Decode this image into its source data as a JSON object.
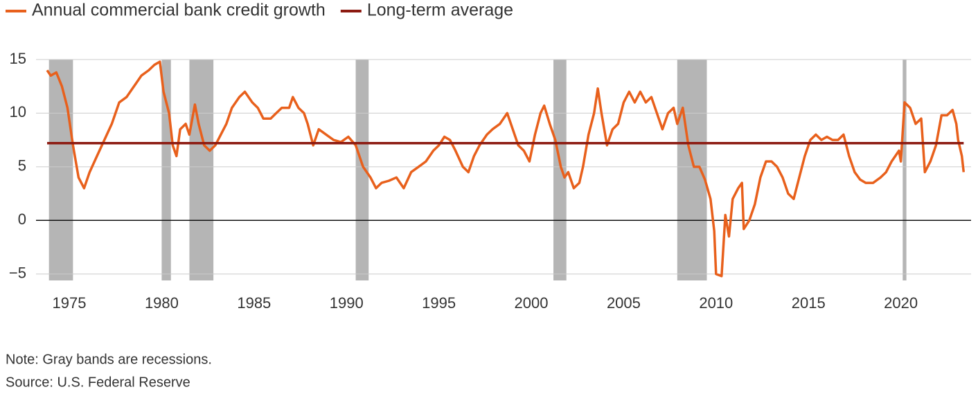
{
  "chart_data": {
    "type": "line",
    "series": [
      {
        "name": "Annual commercial bank credit growth",
        "color": "#e8601c",
        "x": [
          1973.8,
          1974.0,
          1974.3,
          1974.6,
          1974.9,
          1975.2,
          1975.5,
          1975.8,
          1976.1,
          1976.5,
          1976.9,
          1977.3,
          1977.7,
          1978.1,
          1978.5,
          1978.9,
          1979.3,
          1979.6,
          1979.9,
          1980.1,
          1980.4,
          1980.6,
          1980.8,
          1981.0,
          1981.3,
          1981.5,
          1981.8,
          1982.0,
          1982.3,
          1982.6,
          1982.9,
          1983.2,
          1983.5,
          1983.8,
          1984.2,
          1984.5,
          1984.9,
          1985.2,
          1985.5,
          1985.9,
          1986.2,
          1986.5,
          1986.9,
          1987.1,
          1987.4,
          1987.7,
          1987.9,
          1988.2,
          1988.5,
          1988.9,
          1989.3,
          1989.7,
          1990.1,
          1990.5,
          1990.9,
          1991.3,
          1991.6,
          1991.9,
          1992.3,
          1992.7,
          1993.1,
          1993.5,
          1993.9,
          1994.3,
          1994.7,
          1995.0,
          1995.3,
          1995.6,
          1995.9,
          1996.3,
          1996.6,
          1996.9,
          1997.2,
          1997.6,
          1997.9,
          1998.3,
          1998.7,
          1999.0,
          1999.3,
          1999.6,
          1999.9,
          2000.2,
          2000.5,
          2000.7,
          2001.0,
          2001.3,
          2001.6,
          2001.8,
          2002.0,
          2002.3,
          2002.6,
          2002.8,
          2003.1,
          2003.4,
          2003.6,
          2003.8,
          2004.1,
          2004.4,
          2004.7,
          2005.0,
          2005.3,
          2005.6,
          2005.9,
          2006.2,
          2006.5,
          2006.8,
          2007.1,
          2007.4,
          2007.7,
          2007.9,
          2008.2,
          2008.5,
          2008.8,
          2009.1,
          2009.4,
          2009.7,
          2009.9,
          2010.0,
          2010.3,
          2010.5,
          2010.7,
          2010.9,
          2011.2,
          2011.4,
          2011.5,
          2011.8,
          2012.1,
          2012.4,
          2012.7,
          2013.0,
          2013.3,
          2013.6,
          2013.9,
          2014.2,
          2014.5,
          2014.8,
          2015.1,
          2015.4,
          2015.7,
          2016.0,
          2016.3,
          2016.6,
          2016.9,
          2017.2,
          2017.5,
          2017.8,
          2018.1,
          2018.5,
          2018.9,
          2019.2,
          2019.5,
          2019.9,
          2020.0,
          2020.2,
          2020.5,
          2020.8,
          2021.1,
          2021.3,
          2021.6,
          2021.9,
          2022.2,
          2022.5,
          2022.8,
          2023.0,
          2023.1,
          2023.3,
          2023.4
        ],
        "values": [
          14,
          13.5,
          13.8,
          12.5,
          10.5,
          7,
          4,
          3,
          4.5,
          6,
          7.5,
          9,
          11,
          11.5,
          12.5,
          13.5,
          14,
          14.5,
          14.8,
          12,
          10,
          7,
          6,
          8.5,
          9,
          8,
          10.8,
          9,
          7,
          6.5,
          7,
          8,
          9,
          10.5,
          11.5,
          12,
          11,
          10.5,
          9.5,
          9.5,
          10,
          10.5,
          10.5,
          11.5,
          10.5,
          10,
          9,
          7,
          8.5,
          8,
          7.5,
          7.3,
          7.8,
          7,
          5,
          4,
          3,
          3.5,
          3.7,
          4,
          3,
          4.5,
          5,
          5.5,
          6.5,
          7,
          7.8,
          7.5,
          6.5,
          5,
          4.5,
          6,
          7,
          8,
          8.5,
          9,
          10,
          8.5,
          7,
          6.5,
          5.5,
          8,
          10,
          10.7,
          9,
          7.5,
          5,
          4,
          4.5,
          3,
          3.5,
          5,
          8,
          10,
          12.3,
          10,
          7,
          8.5,
          9,
          11,
          12,
          11,
          12,
          11,
          11.5,
          10,
          8.5,
          10,
          10.5,
          9,
          10.5,
          7,
          5,
          5,
          3.8,
          2,
          -1,
          -5,
          -5.2,
          0.5,
          -1.5,
          2,
          3,
          3.5,
          -0.8,
          0,
          1.5,
          4,
          5.5,
          5.5,
          5,
          4,
          2.5,
          2,
          4,
          6,
          7.5,
          8,
          7.5,
          7.8,
          7.5,
          7.5,
          8,
          6,
          4.5,
          3.8,
          3.5,
          3.5,
          4,
          4.5,
          5.5,
          6.5,
          5.5,
          11,
          10.5,
          9,
          9.5,
          4.5,
          5.5,
          7,
          9.8,
          9.8,
          10.3,
          9,
          7.5,
          6,
          4.5
        ]
      },
      {
        "name": "Long-term average",
        "color": "#8c1a11",
        "value": 7.2
      }
    ],
    "recessions": [
      [
        1973.9,
        1975.2
      ],
      [
        1980.0,
        1980.5
      ],
      [
        1981.5,
        1982.8
      ],
      [
        1990.5,
        1991.2
      ],
      [
        2001.2,
        2001.9
      ],
      [
        2007.9,
        2009.5
      ],
      [
        2020.1,
        2020.3
      ]
    ],
    "xlim": [
      1973.2,
      2023.8
    ],
    "xticks": [
      1975,
      1980,
      1985,
      1990,
      1995,
      2000,
      2005,
      2010,
      2015,
      2020
    ],
    "ylim": [
      -5.6,
      15
    ],
    "yticks": [
      15,
      10,
      5,
      0,
      {
        "value": -5,
        "label": "−5"
      }
    ],
    "grid": true,
    "notes": [
      "Note: Gray bands are recessions.",
      "Source: U.S. Federal Reserve"
    ]
  }
}
